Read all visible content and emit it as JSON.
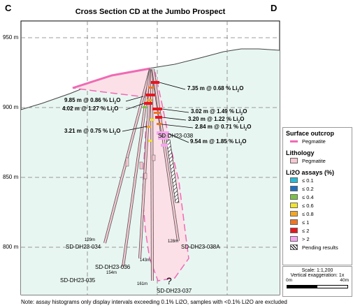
{
  "corners": {
    "left": "C",
    "right": "D"
  },
  "title": "Cross Section CD at the Jumbo Prospect",
  "elevations": [
    "950 m",
    "900 m",
    "850 m",
    "800 m"
  ],
  "intercepts": [
    {
      "length": "7.35 m",
      "grade": "0.68"
    },
    {
      "length": "9.85 m",
      "grade": "0.86"
    },
    {
      "length": "4.02 m",
      "grade": "1.27"
    },
    {
      "length": "3.02 m",
      "grade": "1.49"
    },
    {
      "length": "3.20 m",
      "grade": "1.22"
    },
    {
      "length": "2.84 m",
      "grade": "0.71"
    },
    {
      "length": "3.21 m",
      "grade": "0.75"
    },
    {
      "length": "9.54 m",
      "grade": "1.85"
    }
  ],
  "intercept_unit": "% Li",
  "intercept_sub": "2",
  "intercept_suffix": "O",
  "holes": [
    {
      "id": "SD-DH23-034",
      "depth": "129m"
    },
    {
      "id": "SD-DH23-035",
      "depth": "154m"
    },
    {
      "id": "SD-DH23-036",
      "depth": "143m"
    },
    {
      "id": "SD-DH23-037",
      "depth": "161m"
    },
    {
      "id": "SD-DH23-038",
      "depth": ""
    },
    {
      "id": "SD-DH23-038A",
      "depth": "128m"
    }
  ],
  "question_mark": "?",
  "legend": {
    "surface_title": "Surface outcrop",
    "surface_item": "Pegmatite",
    "surface_color": "#f06ab4",
    "lithology_title": "Lithology",
    "lithology_item": "Pegmatite",
    "lithology_color": "#f6c9d2",
    "assays_title": "Li2O assays (%)",
    "assays": [
      {
        "label": "≤ 0.1",
        "color": "#29b8d6"
      },
      {
        "label": "≤ 0.2",
        "color": "#1f6fc0"
      },
      {
        "label": "≤ 0.4",
        "color": "#7cc242"
      },
      {
        "label": "≤ 0.6",
        "color": "#f2e52b"
      },
      {
        "label": "≤ 0.8",
        "color": "#f4a623"
      },
      {
        "label": "≤ 1",
        "color": "#ee7625"
      },
      {
        "label": "≤ 2",
        "color": "#e8151f"
      },
      {
        "label": "> 2",
        "color": "#f7a5f0"
      }
    ],
    "pending_label": "Pending results"
  },
  "scale": {
    "scale_text": "Scale: 1:1,200",
    "exaggeration": "Vertical exaggeration: 1x",
    "start": "0m",
    "end": "40m"
  },
  "footnote": "Note: assay histograms only display intervals exceeding 0.1% Li2O, samples with <0.1% Li2O are excluded"
}
